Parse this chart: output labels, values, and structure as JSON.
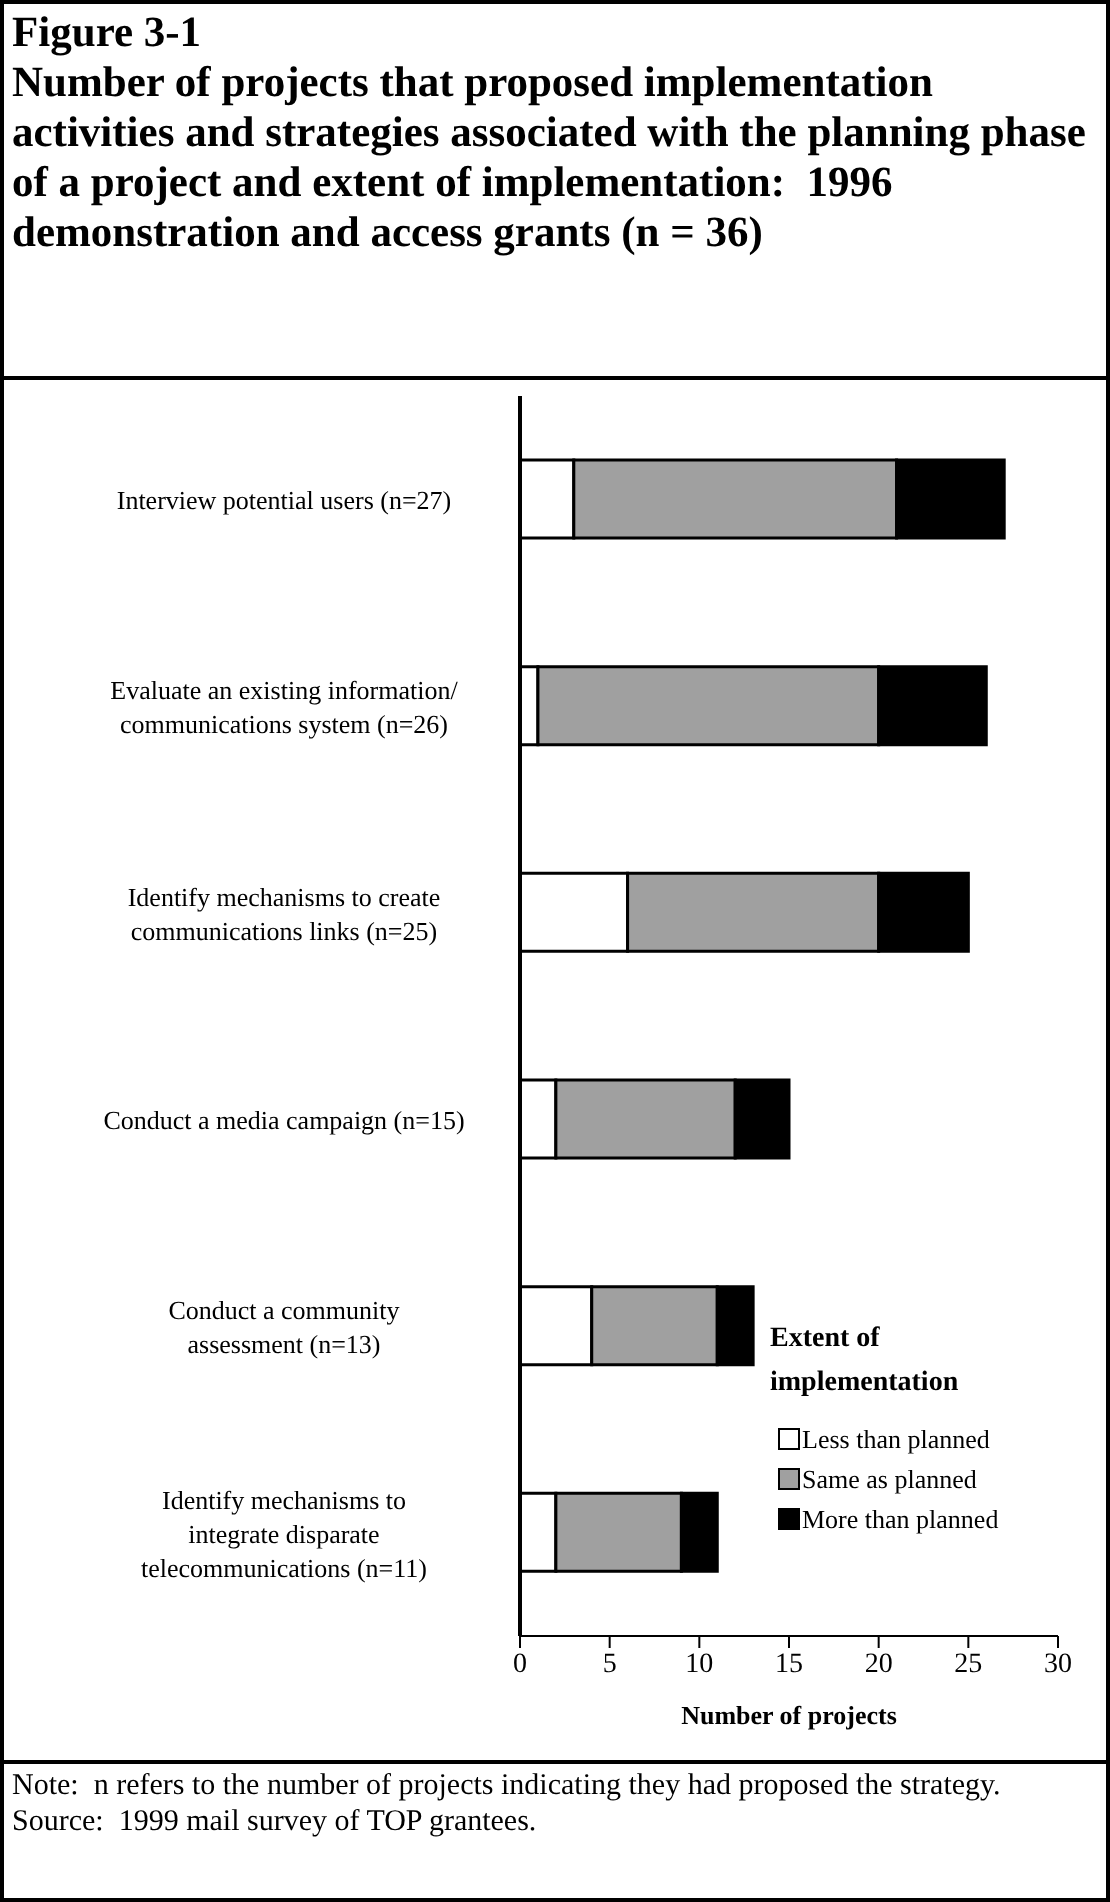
{
  "chart_data": {
    "type": "bar",
    "orientation": "horizontal",
    "stacked": true,
    "title": "Figure 3-1",
    "subtitle": "Number of projects that proposed implementation activities and strategies associated with the planning phase of a project and extent of implementation:  1996 demonstration and access grants (n = 36)",
    "categories": [
      "Interview potential users (n=27)",
      "Evaluate an existing information/\ncommunications system (n=26)",
      "Identify mechanisms to create\ncommunications links (n=25)",
      "Conduct a media campaign (n=15)",
      "Conduct a community\nassessment (n=13)",
      "Identify mechanisms to\nintegrate disparate\ntelecommunications (n=11)"
    ],
    "series": [
      {
        "name": "Less than planned",
        "color": "#ffffff",
        "values": [
          3,
          1,
          6,
          2,
          4,
          2
        ]
      },
      {
        "name": "Same as planned",
        "color": "#a0a0a0",
        "values": [
          18,
          19,
          14,
          10,
          7,
          7
        ]
      },
      {
        "name": "More than planned",
        "color": "#000000",
        "values": [
          6,
          6,
          5,
          3,
          2,
          2
        ]
      }
    ],
    "xlim": [
      0,
      30
    ],
    "xticks": [
      0,
      5,
      10,
      15,
      20,
      25,
      30
    ],
    "xlabel": "Number of projects",
    "legend_title": "Extent of\nimplementation",
    "legend": "bottom right",
    "grid": false,
    "annotations": [
      "Note:  n refers to the number of projects indicating they had proposed the strategy.",
      "Source:  1999 mail survey of TOP grantees."
    ]
  }
}
